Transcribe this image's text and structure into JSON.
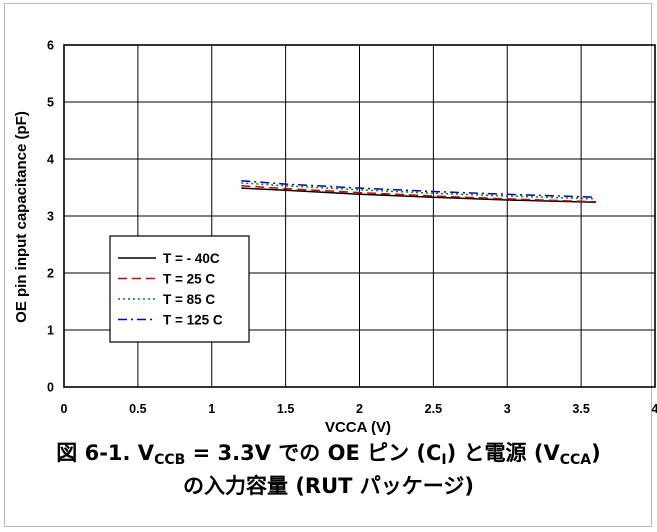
{
  "chart_data": {
    "type": "line",
    "title": "",
    "xlabel": "VCCA (V)",
    "ylabel": "OE pin input capacitance (pF)",
    "xlim": [
      0,
      4
    ],
    "ylim": [
      0,
      6
    ],
    "xticks": [
      0,
      0.5,
      1,
      1.5,
      2,
      2.5,
      3,
      3.5,
      4
    ],
    "xtick_labels": [
      "0",
      "0.5",
      "1",
      "1.5",
      "2",
      "2.5",
      "3",
      "3.5",
      "4"
    ],
    "yticks": [
      0,
      1,
      2,
      3,
      4,
      5,
      6
    ],
    "ytick_labels": [
      "0",
      "1",
      "2",
      "3",
      "4",
      "5",
      "6"
    ],
    "grid": true,
    "legend_position": "lower-left",
    "x": [
      1.2,
      1.5,
      2,
      2.5,
      3,
      3.6
    ],
    "series": [
      {
        "name": "T = - 40C",
        "color": "#000000",
        "dash": "solid",
        "values": [
          3.49,
          3.45,
          3.38,
          3.33,
          3.28,
          3.24
        ]
      },
      {
        "name": "T = 25 C",
        "color": "#cc0000",
        "dash": "dashed",
        "values": [
          3.53,
          3.48,
          3.41,
          3.35,
          3.3,
          3.25
        ]
      },
      {
        "name": "T = 85 C",
        "color": "#008800",
        "dash": "dotted",
        "values": [
          3.58,
          3.53,
          3.46,
          3.4,
          3.35,
          3.3
        ]
      },
      {
        "name": "T = 125 C",
        "color": "#0000cc",
        "dash": "dashdot",
        "values": [
          3.62,
          3.56,
          3.49,
          3.43,
          3.38,
          3.33
        ]
      }
    ]
  },
  "caption": {
    "part1": "図 6-1. V",
    "sub1": "CCB",
    "part2": " = 3.3V での OE ピン (C",
    "sub2": "I",
    "part3": ") と電源 (V",
    "sub3": "CCA",
    "part4": ")",
    "line2": "の入力容量 (RUT パッケージ)"
  }
}
